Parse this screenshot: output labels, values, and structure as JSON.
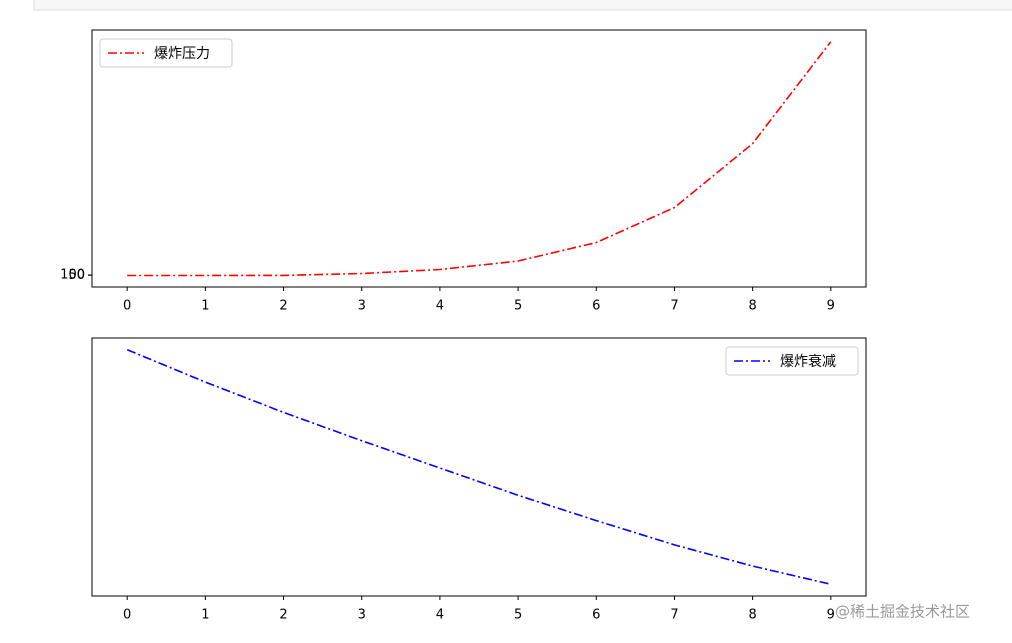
{
  "chart_data": [
    {
      "type": "line",
      "x": [
        0,
        1,
        2,
        3,
        4,
        5,
        6,
        7,
        8,
        9
      ],
      "series": [
        {
          "name": "爆炸压力",
          "color": "#ff0000",
          "values": [
            1,
            3,
            20,
            400,
            1200,
            2900,
            6600,
            13600,
            26400,
            46800
          ]
        }
      ],
      "xlim": [
        -0.45,
        9.45
      ],
      "ylim": [
        -2300,
        49140
      ],
      "xticks": [
        0,
        1,
        2,
        3,
        4,
        5,
        6,
        7,
        8,
        9
      ],
      "yticks": [
        50,
        100
      ],
      "legend": "upper-left"
    },
    {
      "type": "line",
      "x": [
        0,
        1,
        2,
        3,
        4,
        5,
        6,
        7,
        8,
        9
      ],
      "series": [
        {
          "name": "爆炸衰减",
          "color": "#0000ff",
          "values": [
            245,
            213,
            183,
            155,
            128,
            101,
            76,
            52,
            31,
            13
          ]
        }
      ],
      "xlim": [
        -0.45,
        9.45
      ],
      "ylim": [
        1.4,
        256.6
      ],
      "xticks": [
        0,
        1,
        2,
        3,
        4,
        5,
        6,
        7,
        8,
        9
      ],
      "legend": "upper-right"
    }
  ],
  "watermark": "@稀土掘金技术社区"
}
